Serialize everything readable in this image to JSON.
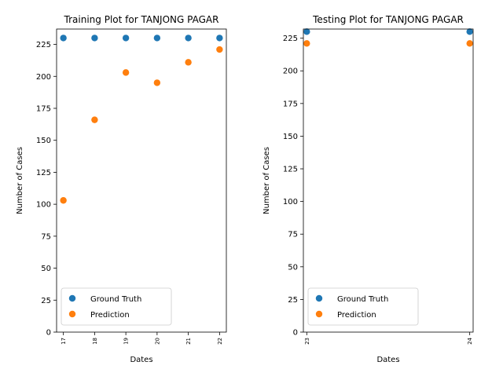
{
  "chart_data": [
    {
      "type": "scatter",
      "title": "Training Plot for TANJONG PAGAR",
      "xlabel": "Dates",
      "ylabel": "Number of Cases",
      "x": [
        "17",
        "18",
        "19",
        "20",
        "21",
        "22"
      ],
      "series": [
        {
          "name": "Ground Truth",
          "color": "#1f77b4",
          "values": [
            230,
            230,
            230,
            230,
            230,
            230
          ]
        },
        {
          "name": "Prediction",
          "color": "#ff7f0e",
          "values": [
            103,
            166,
            203,
            195,
            211,
            221
          ]
        }
      ],
      "ylim": [
        0,
        237
      ],
      "yticks": [
        0,
        25,
        50,
        75,
        100,
        125,
        150,
        175,
        200,
        225
      ],
      "legend": "lower-left"
    },
    {
      "type": "scatter",
      "title": "Testing Plot for TANJONG PAGAR",
      "xlabel": "Dates",
      "ylabel": "Number of Cases",
      "x": [
        "23",
        "24"
      ],
      "series": [
        {
          "name": "Ground Truth",
          "color": "#1f77b4",
          "values": [
            230,
            230
          ]
        },
        {
          "name": "Prediction",
          "color": "#ff7f0e",
          "values": [
            221,
            221
          ]
        }
      ],
      "ylim": [
        0,
        232
      ],
      "yticks": [
        0,
        25,
        50,
        75,
        100,
        125,
        150,
        175,
        200,
        225
      ],
      "legend": "lower-left"
    }
  ]
}
